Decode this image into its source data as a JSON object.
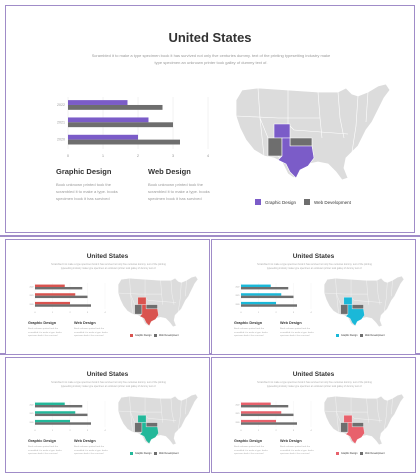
{
  "main": {
    "title": "United States",
    "subtitle": "Scrambled it to make a type specimen book it has survived not only five centuries dummy. text of the printing typesetting industry make type specimen an unknown printer took galley of dummy text of.",
    "accent": "#7b5cc8",
    "secondary": "#6e6e6e",
    "section1_title": "Graphic Design",
    "section1_body": "Book unknown printed took the scrambled it to make a type. books specimen book it has survived",
    "section2_title": "Web Design",
    "section2_body": "Book unknown printed took the scrambled it to make a type. books specimen book it has survived",
    "legend1": "Graphic Design",
    "legend2": "Web Development"
  },
  "chart_data": {
    "type": "bar",
    "orientation": "horizontal",
    "categories": [
      "2022",
      "2021",
      "2020"
    ],
    "series": [
      {
        "values": [
          1.7,
          2.3,
          2.0
        ]
      },
      {
        "values": [
          2.7,
          3.0,
          3.2
        ]
      }
    ],
    "xticks": [
      "0",
      "1",
      "2",
      "3",
      "4"
    ],
    "xlim": [
      0,
      4
    ],
    "legend": "bottom-right"
  },
  "thumbs": [
    {
      "title": "United States",
      "accent": "#d9534f",
      "secondary": "#6e6e6e",
      "section1_title": "Graphic Design",
      "section2_title": "Web Design",
      "legend1": "Graphic Design",
      "legend2": "Web Development"
    },
    {
      "title": "United States",
      "accent": "#1ab8d8",
      "secondary": "#6e6e6e",
      "section1_title": "Graphic Design",
      "section2_title": "Web Design",
      "legend1": "Graphic Design",
      "legend2": "Web Development"
    },
    {
      "title": "United States",
      "accent": "#23b89a",
      "secondary": "#6e6e6e",
      "section1_title": "Graphic Design",
      "section2_title": "Web Design",
      "legend1": "Graphic Design",
      "legend2": "Web Development"
    },
    {
      "title": "United States",
      "accent": "#e8616c",
      "secondary": "#6e6e6e",
      "section1_title": "Graphic Design",
      "section2_title": "Web Design",
      "legend1": "Graphic Design",
      "legend2": "Web Development"
    }
  ],
  "map_fill_color": "#dcdcdc",
  "map_icon": "usa-map"
}
